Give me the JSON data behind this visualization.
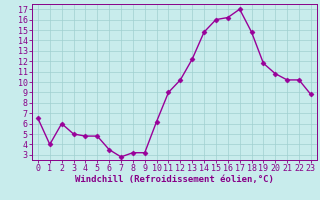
{
  "x": [
    0,
    1,
    2,
    3,
    4,
    5,
    6,
    7,
    8,
    9,
    10,
    11,
    12,
    13,
    14,
    15,
    16,
    17,
    18,
    19,
    20,
    21,
    22,
    23
  ],
  "y": [
    6.5,
    4.0,
    6.0,
    5.0,
    4.8,
    4.8,
    3.5,
    2.8,
    3.2,
    3.2,
    6.2,
    9.0,
    10.2,
    12.2,
    14.8,
    16.0,
    16.2,
    17.0,
    14.8,
    11.8,
    10.8,
    10.2,
    10.2,
    8.8
  ],
  "line_color": "#990099",
  "marker": "D",
  "markersize": 2.5,
  "linewidth": 1.0,
  "bg_color": "#c8ecec",
  "grid_color": "#a0d0d0",
  "xlabel": "Windchill (Refroidissement éolien,°C)",
  "xlabel_fontsize": 6.5,
  "ylabel_ticks": [
    3,
    4,
    5,
    6,
    7,
    8,
    9,
    10,
    11,
    12,
    13,
    14,
    15,
    16,
    17
  ],
  "xlim": [
    -0.5,
    23.5
  ],
  "ylim": [
    2.5,
    17.5
  ],
  "tick_fontsize": 6.0,
  "axis_color": "#880088"
}
